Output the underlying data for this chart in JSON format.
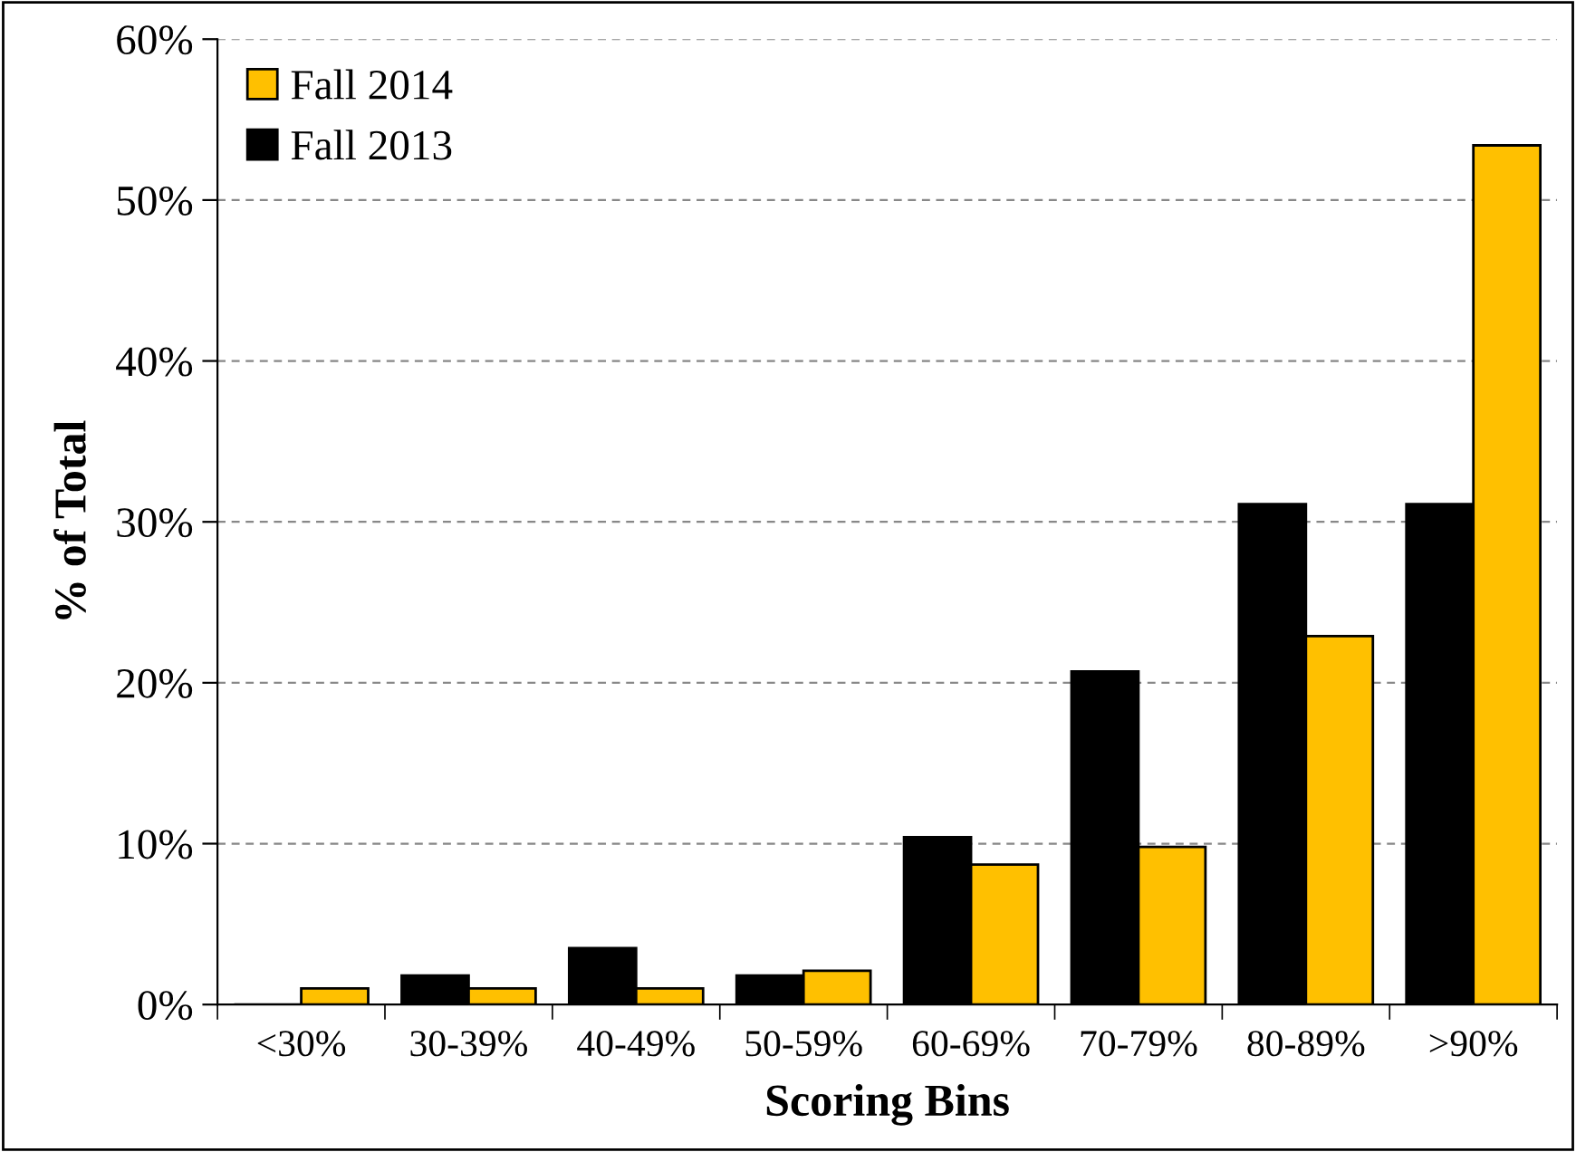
{
  "chart_data": {
    "type": "bar",
    "xlabel": "Scoring Bins",
    "ylabel": "% of Total",
    "categories": [
      "<30%",
      "30-39%",
      "40-49%",
      "50-59%",
      "60-69%",
      "70-79%",
      "80-89%",
      ">90%"
    ],
    "series": [
      {
        "name": "Fall 2013",
        "color": "#000000",
        "values": [
          0,
          1.8,
          3.5,
          1.8,
          10.4,
          20.7,
          31.1,
          31.1
        ]
      },
      {
        "name": "Fall 2014",
        "color": "#ffc000",
        "values": [
          1.0,
          1.0,
          1.0,
          2.1,
          8.7,
          9.8,
          22.9,
          53.4
        ]
      }
    ],
    "ylim": [
      0,
      60
    ],
    "yticks": [
      {
        "value": 0,
        "label": "0%"
      },
      {
        "value": 10,
        "label": "10%"
      },
      {
        "value": 20,
        "label": "20%"
      },
      {
        "value": 30,
        "label": "30%"
      },
      {
        "value": 40,
        "label": "40%"
      },
      {
        "value": 50,
        "label": "50%"
      },
      {
        "value": 60,
        "label": "60%"
      }
    ],
    "grid": "y",
    "legend": "top left"
  }
}
